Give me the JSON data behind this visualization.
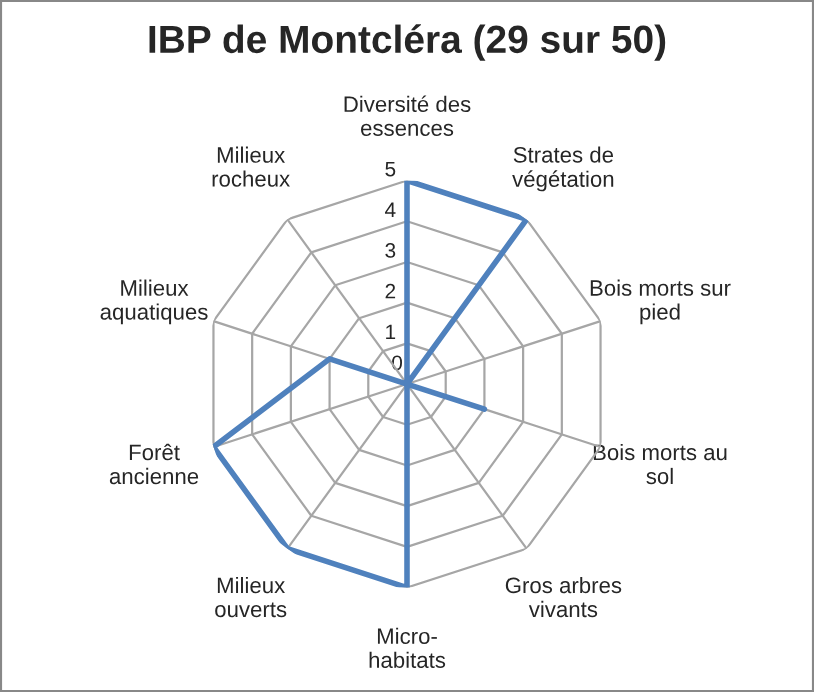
{
  "chart_data": {
    "type": "radar",
    "title": "IBP de Montcléra (29 sur 50)",
    "categories": [
      "Diversité des\nessences",
      "Strates de\nvégétation",
      "Bois morts sur\npied",
      "Bois morts au\nsol",
      "Gros arbres\nvivants",
      "Micro-\nhabitats",
      "Milieux\nouverts",
      "Forêt\nancienne",
      "Milieux\naquatiques",
      "Milieux\nrocheux"
    ],
    "series": [
      {
        "color": "#4f81bd",
        "values": [
          5,
          5,
          0,
          2,
          0,
          5,
          5,
          5,
          2,
          0
        ]
      }
    ],
    "ylim": [
      0,
      5
    ],
    "yticks": [
      0,
      1,
      2,
      3,
      4,
      5
    ],
    "grid": true,
    "marker": "none",
    "line_style": "solid"
  }
}
